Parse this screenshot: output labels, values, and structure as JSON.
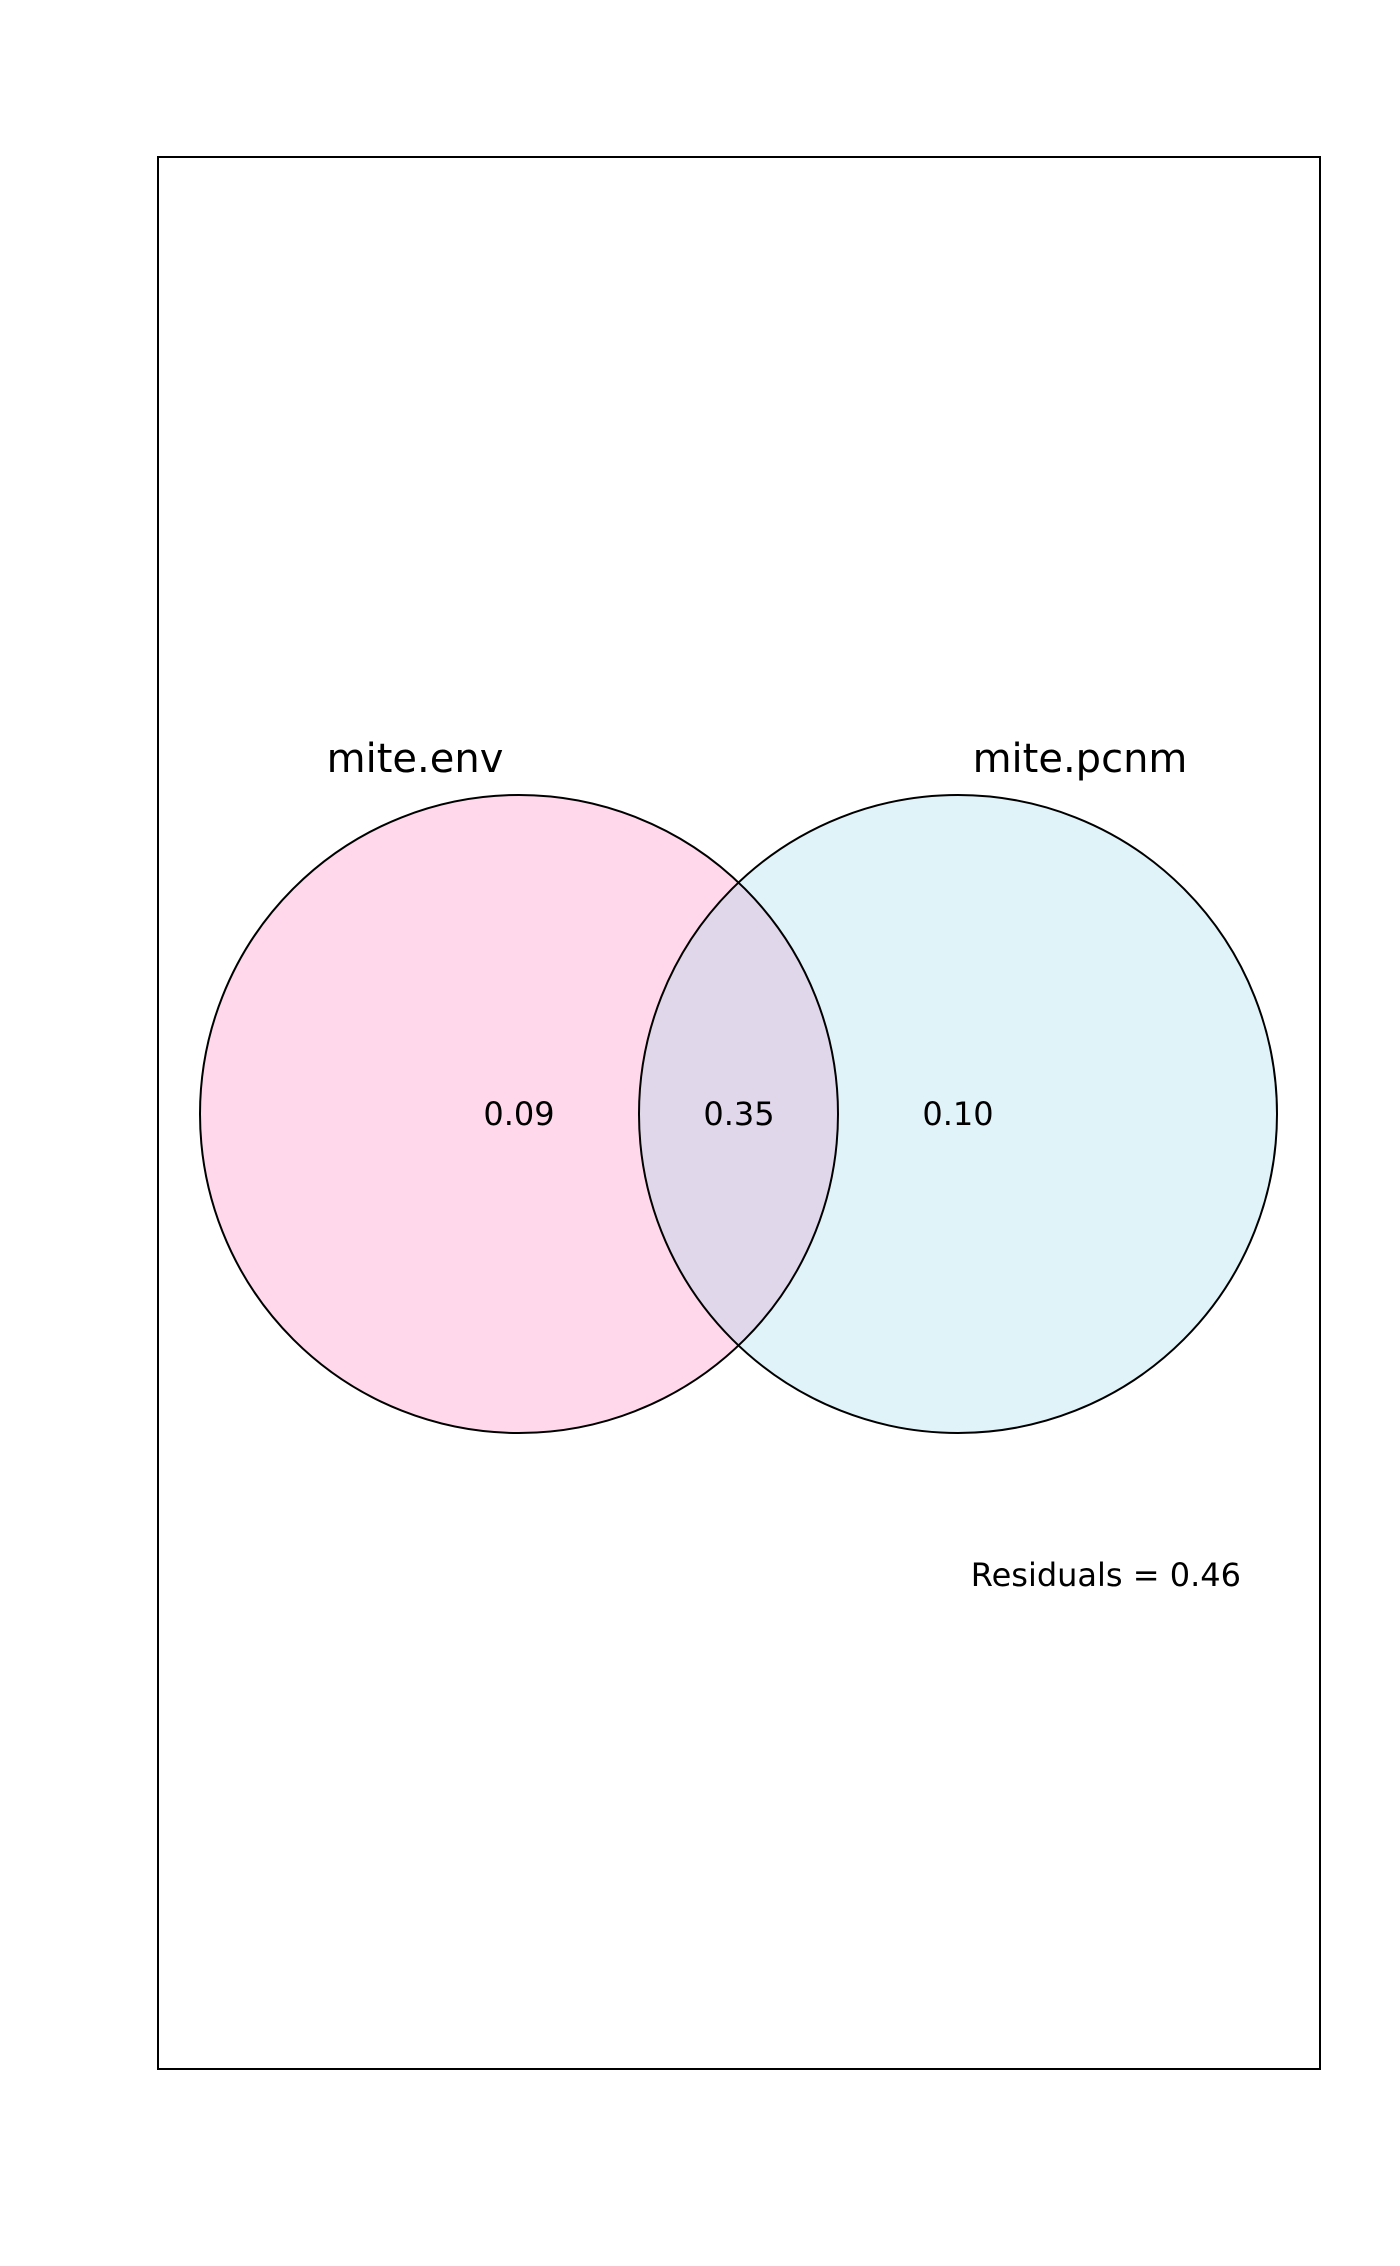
{
  "venn": {
    "sets": [
      {
        "name": "mite.env",
        "color": "#FFD9EB"
      },
      {
        "name": "mite.pcnm",
        "color": "#E0F3F9"
      }
    ],
    "intersection_color": "#E1D7EB",
    "outline_color": "#000000",
    "fractions": {
      "env_only": "0.09",
      "shared": "0.35",
      "pcnm_only": "0.10"
    },
    "residuals_text": "Residuals = 0.46"
  }
}
